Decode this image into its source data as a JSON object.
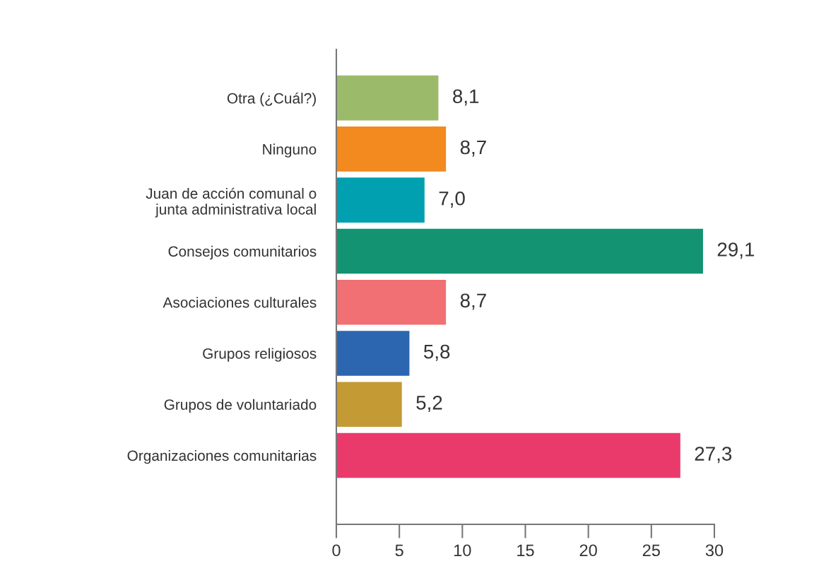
{
  "chart_data": {
    "type": "bar",
    "orientation": "horizontal",
    "categories": [
      "Otra (¿Cuál?)",
      "Ninguno",
      "Juan de acción comunal o\njunta administrativa local",
      "Consejos comunitarios",
      "Asociaciones culturales",
      "Grupos religiosos",
      "Grupos de voluntariado",
      "Organizaciones comunitarias"
    ],
    "values": [
      8.1,
      8.7,
      7.0,
      29.1,
      8.7,
      5.8,
      5.2,
      27.3
    ],
    "colors": [
      "#9bbb6a",
      "#f28a20",
      "#00a0b0",
      "#139372",
      "#f07073",
      "#2c66b0",
      "#c49a35",
      "#ea3a6c"
    ],
    "value_labels": [
      "8,1",
      "8,7",
      "7,0",
      "29,1",
      "8,7",
      "5,8",
      "5,2",
      "27,3"
    ],
    "xlim": [
      0,
      30
    ],
    "xticks": [
      0,
      5,
      10,
      15,
      20,
      25,
      30
    ],
    "grid": false,
    "legend": false
  }
}
